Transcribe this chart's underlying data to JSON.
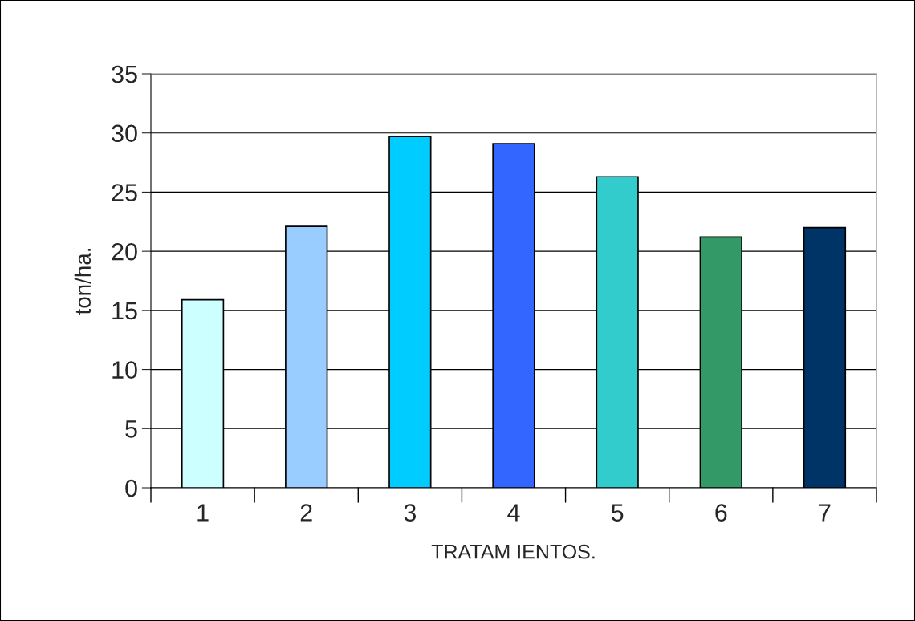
{
  "chart_data": {
    "type": "bar",
    "xlabel": "TRATAM IENTOS.",
    "ylabel": "ton/ha.",
    "categories": [
      "1",
      "2",
      "3",
      "4",
      "5",
      "6",
      "7"
    ],
    "values": [
      15.9,
      22.1,
      29.7,
      29.1,
      26.3,
      21.2,
      22.0
    ],
    "colors": [
      "#ccffff",
      "#99ccff",
      "#00ccff",
      "#3366ff",
      "#33cccc",
      "#339966",
      "#003366"
    ],
    "ylim": [
      0,
      35
    ],
    "yticks": [
      0,
      5,
      10,
      15,
      20,
      25,
      30,
      35
    ],
    "grid": "y",
    "legend": false
  }
}
